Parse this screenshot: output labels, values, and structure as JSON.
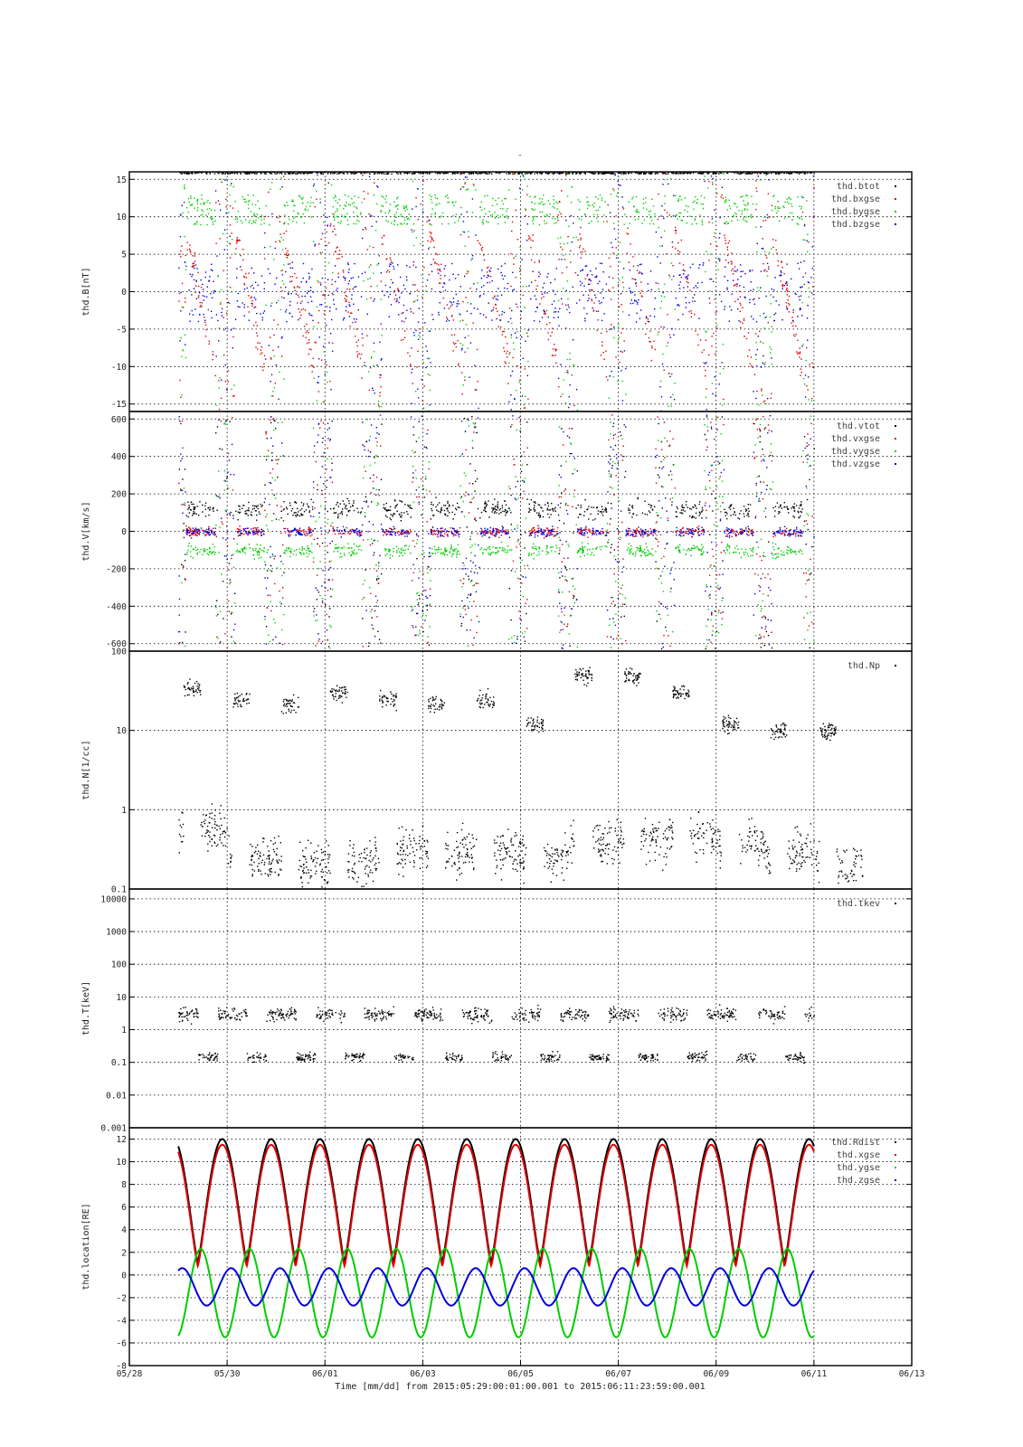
{
  "figure": {
    "title": "-",
    "xlabel": "Time [mm/dd]  from 2015:05:29:00:01:00.001  to  2015:06:11:23:59:00.001",
    "colors": {
      "black": "#000000",
      "red": "#dd0000",
      "green": "#00cc00",
      "blue": "#0000dd"
    }
  },
  "chart_data": [
    {
      "type": "scatter",
      "ylabel": "thd.B[nT]",
      "scale": "linear",
      "ylim": [
        -16,
        16
      ],
      "yticks": [
        15,
        10,
        5,
        0,
        -5,
        -10,
        -15
      ],
      "ytick_labels": [
        "15",
        "10",
        "5",
        "0",
        "-5",
        "-10",
        "-15"
      ],
      "grid": true,
      "legend_position": "top-right",
      "xlim": [
        "05/28",
        "06/13"
      ],
      "series": [
        {
          "name": "thd.btot",
          "color": "#000000",
          "description_values": "dense scatter clipped near 16 nT"
        },
        {
          "name": "thd.bxgse",
          "color": "#dd0000"
        },
        {
          "name": "thd.bygse",
          "color": "#00cc00"
        },
        {
          "name": "thd.bzgse",
          "color": "#0000dd"
        }
      ]
    },
    {
      "type": "scatter",
      "ylabel": "thd.V[km/s]",
      "scale": "linear",
      "ylim": [
        -640,
        640
      ],
      "yticks": [
        600,
        400,
        200,
        0,
        -200,
        -400,
        -600
      ],
      "ytick_labels": [
        "600",
        "400",
        "200",
        "0",
        "-200",
        "-400",
        "-600"
      ],
      "grid": true,
      "legend_position": "top-right",
      "series": [
        {
          "name": "thd.vtot",
          "color": "#000000"
        },
        {
          "name": "thd.vxgse",
          "color": "#dd0000"
        },
        {
          "name": "thd.vygse",
          "color": "#00cc00"
        },
        {
          "name": "thd.vzgse",
          "color": "#0000dd"
        }
      ]
    },
    {
      "type": "scatter",
      "ylabel": "thd.N[1/cc]",
      "scale": "log",
      "ylim": [
        0.1,
        100
      ],
      "yticks": [
        100,
        10,
        1,
        0.1
      ],
      "ytick_labels": [
        "100",
        "10",
        "1",
        "0.1"
      ],
      "grid": true,
      "legend_position": "top-right",
      "series": [
        {
          "name": "thd.Np",
          "color": "#000000",
          "approx_levels": {
            "days": [
              "05/29",
              "05/30",
              "05/31",
              "06/01",
              "06/02",
              "06/03",
              "06/04",
              "06/05",
              "06/06",
              "06/07",
              "06/08",
              "06/09",
              "06/10",
              "06/11"
            ],
            "high": [
              35,
              25,
              22,
              30,
              25,
              22,
              25,
              12,
              50,
              50,
              30,
              12,
              10,
              10
            ],
            "low": [
              0.6,
              0.25,
              0.2,
              0.2,
              0.3,
              0.3,
              0.3,
              0.25,
              0.4,
              0.4,
              0.5,
              0.4,
              0.3,
              0.2
            ]
          }
        }
      ]
    },
    {
      "type": "scatter",
      "ylabel": "thd.T[keV]",
      "scale": "log",
      "ylim": [
        0.001,
        20000
      ],
      "yticks": [
        10000,
        1000,
        100,
        10,
        1,
        0.1,
        0.01,
        0.001
      ],
      "ytick_labels": [
        "10000",
        "1000",
        "100",
        "10",
        "1",
        "0.1",
        "0.01",
        "0.001"
      ],
      "grid": true,
      "legend_position": "top-right",
      "series": [
        {
          "name": "thd.tkev",
          "color": "#000000",
          "approx_levels": {
            "sheath": 0.15,
            "magnetosphere": 3
          }
        }
      ]
    },
    {
      "type": "line",
      "ylabel": "thd.location[RE]",
      "scale": "linear",
      "ylim": [
        -8,
        13
      ],
      "yticks": [
        12,
        10,
        8,
        6,
        4,
        2,
        0,
        -2,
        -4,
        -6,
        -8
      ],
      "ytick_labels": [
        "12",
        "10",
        "8",
        "6",
        "4",
        "2",
        "0",
        "-2",
        "-4",
        "-6",
        "-8"
      ],
      "grid": true,
      "legend_position": "top-right",
      "orbit_period_days": 1.0,
      "series": [
        {
          "name": "thd.Rdist",
          "color": "#000000",
          "max": 12.0,
          "min": 1.1
        },
        {
          "name": "thd.xgse",
          "color": "#dd0000",
          "max": 11.5,
          "min": 0.8
        },
        {
          "name": "thd.ygse",
          "color": "#00cc00",
          "max": 2.3,
          "min": -5.5
        },
        {
          "name": "thd.zgse",
          "color": "#0000dd",
          "max": 0.6,
          "min": -2.7
        }
      ]
    }
  ],
  "x_axis": {
    "ticks": [
      "05/28",
      "05/30",
      "06/01",
      "06/03",
      "06/05",
      "06/07",
      "06/09",
      "06/11",
      "06/13"
    ],
    "data_start": "05/29",
    "data_end": "06/12"
  }
}
